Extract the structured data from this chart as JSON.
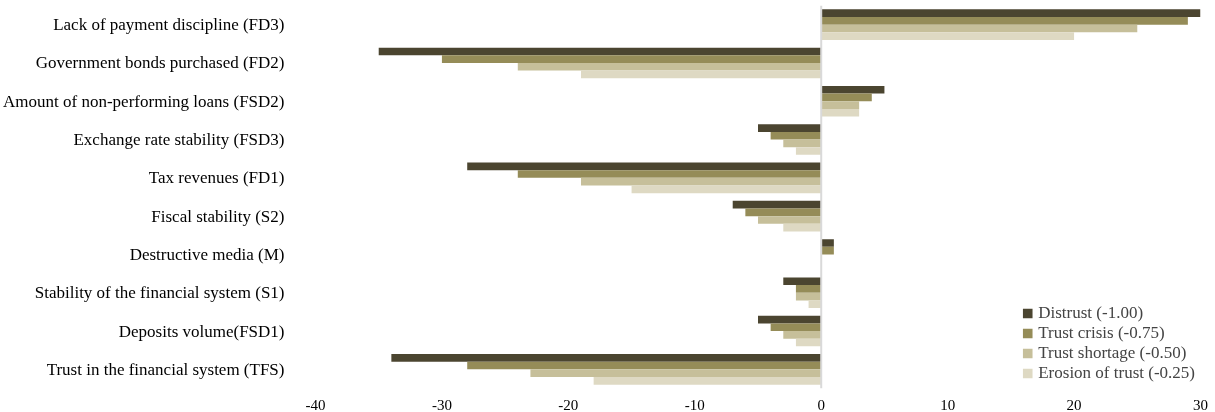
{
  "chart_data": {
    "type": "bar",
    "orientation": "horizontal",
    "categories": [
      "Lack of payment discipline (FD3)",
      "Government bonds purchased (FD2)",
      "Amount of non-performing loans (FSD2)",
      "Exchange rate stability (FSD3)",
      "Tax revenues (FD1)",
      "Fiscal stability (S2)",
      "Destructive media (M)",
      "Stability of the financial system (S1)",
      "Deposits volume(FSD1)",
      "Trust in the financial system (TFS)"
    ],
    "series": [
      {
        "name": "Distrust (-1.00)",
        "color": "#4b4530",
        "values": [
          30,
          -35,
          5,
          -5,
          -28,
          -7,
          1,
          -3,
          -5,
          -34
        ]
      },
      {
        "name": "Trust crisis (-0.75)",
        "color": "#958c58",
        "values": [
          29,
          -30,
          4,
          -4,
          -24,
          -6,
          1,
          -2,
          -4,
          -28
        ]
      },
      {
        "name": "Trust shortage (-0.50)",
        "color": "#c6bf9a",
        "values": [
          25,
          -24,
          3,
          -3,
          -19,
          -5,
          0,
          -2,
          -3,
          -23
        ]
      },
      {
        "name": "Erosion of trust (-0.25)",
        "color": "#ded9c3",
        "values": [
          20,
          -19,
          3,
          -2,
          -15,
          -3,
          0,
          -1,
          -2,
          -18
        ]
      }
    ],
    "xlim": [
      -40,
      30
    ],
    "xticks": [
      -40,
      -30,
      -20,
      -10,
      0,
      10,
      20,
      30
    ],
    "ref_lines": [
      {
        "axis": "x",
        "value": 0,
        "color": "#d9d9d9"
      }
    ],
    "grid": false,
    "legend": "bottom right"
  }
}
